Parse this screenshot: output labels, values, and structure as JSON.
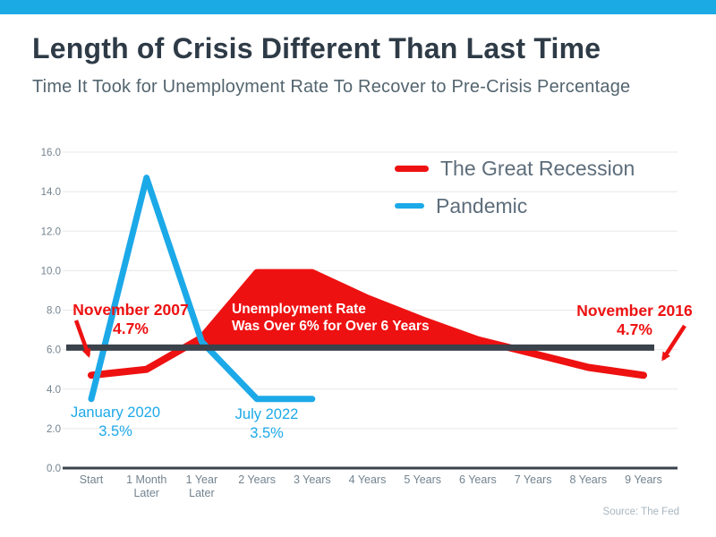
{
  "header": {
    "title": "Length of Crisis Different Than Last Time",
    "subtitle": "Time It Took for Unemployment Rate To Recover to Pre-Crisis Percentage"
  },
  "legend": [
    {
      "label": "The Great Recession",
      "color": "#ee1111"
    },
    {
      "label": "Pandemic",
      "color": "#1ca9e8"
    }
  ],
  "chart_data": {
    "type": "line",
    "categories": [
      "Start",
      "1 Month\nLater",
      "1 Year\nLater",
      "2 Years",
      "3 Years",
      "4 Years",
      "5 Years",
      "6 Years",
      "7 Years",
      "8 Years",
      "9 Years"
    ],
    "series": [
      {
        "name": "The Great Recession",
        "color": "#ee1111",
        "fill_above_reference": true,
        "values": [
          4.7,
          5.0,
          6.6,
          9.9,
          9.9,
          8.6,
          7.5,
          6.5,
          5.8,
          5.1,
          4.7
        ]
      },
      {
        "name": "Pandemic",
        "color": "#1ca9e8",
        "fill_above_reference": false,
        "values": [
          3.5,
          14.7,
          6.4,
          3.5,
          3.5,
          null,
          null,
          null,
          null,
          null,
          null
        ]
      }
    ],
    "ylim": [
      0,
      16
    ],
    "ytick_step": 2,
    "ytick_format": "one-decimal",
    "reference_line": {
      "value": 6.1,
      "color": "#3a424b"
    },
    "grid": true,
    "legend_position": "top-right"
  },
  "annotations": {
    "nov2007": {
      "line1": "November 2007",
      "line2": "4.7%",
      "color": "red"
    },
    "nov2016": {
      "line1": "November 2016",
      "line2": "4.7%",
      "color": "red"
    },
    "jan2020": {
      "line1": "January 2020",
      "line2": "3.5%",
      "color": "blue"
    },
    "jul2022": {
      "line1": "July 2022",
      "line2": "3.5%",
      "color": "blue"
    },
    "note": {
      "line1": "Unemployment Rate",
      "line2": "Was Over 6% for Over 6 Years",
      "color": "white"
    }
  },
  "source": "Source: The Fed",
  "colors": {
    "red": "#ee1111",
    "blue": "#1ca9e8",
    "top_bar": "#1caae5",
    "title": "#2e3b47",
    "subtitle": "#53656f",
    "legend_text": "#5d6d7b",
    "axis_text": "#73838f",
    "grid": "#e8e8e8",
    "axis_line": "#39424a",
    "reference_line": "#3a424b",
    "source_text": "#a9b6c0"
  }
}
